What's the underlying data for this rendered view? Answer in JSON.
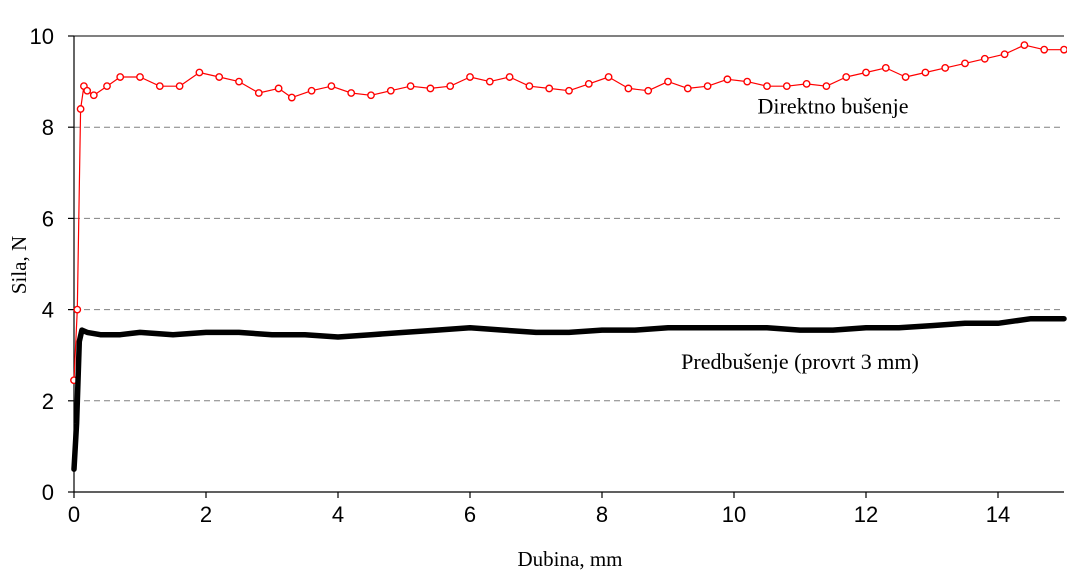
{
  "chart_data": {
    "type": "line",
    "xlabel": "Dubina, mm",
    "ylabel": "Sila, N",
    "xlim": [
      0,
      15
    ],
    "ylim": [
      0,
      10
    ],
    "x_ticks": [
      "0",
      "2",
      "4",
      "6",
      "8",
      "10",
      "12",
      "14"
    ],
    "y_ticks": [
      "0",
      "2",
      "4",
      "6",
      "8",
      "10"
    ],
    "grid": "horizontal dashed",
    "colors": {
      "red_series": "#ff0000",
      "black_series": "#000000",
      "grid": "#808080"
    },
    "annotations": [
      {
        "text": "Direktno bušenje",
        "x": 11.5,
        "y": 8.3
      },
      {
        "text": "Predbušenje (provrt 3 mm)",
        "x": 11.0,
        "y": 2.7
      }
    ],
    "series": [
      {
        "style": "line-with-circle-markers",
        "color": "#ff0000",
        "x": [
          0,
          0.05,
          0.1,
          0.15,
          0.2,
          0.3,
          0.5,
          0.7,
          1,
          1.3,
          1.6,
          1.9,
          2.2,
          2.5,
          2.8,
          3.1,
          3.3,
          3.6,
          3.9,
          4.2,
          4.5,
          4.8,
          5.1,
          5.4,
          5.7,
          6.0,
          6.3,
          6.6,
          6.9,
          7.2,
          7.5,
          7.8,
          8.1,
          8.4,
          8.7,
          9.0,
          9.3,
          9.6,
          9.9,
          10.2,
          10.5,
          10.8,
          11.1,
          11.4,
          11.7,
          12.0,
          12.3,
          12.6,
          12.9,
          13.2,
          13.5,
          13.8,
          14.1,
          14.4,
          14.7,
          15.0
        ],
        "y": [
          2.45,
          4.0,
          8.4,
          8.9,
          8.8,
          8.7,
          8.9,
          9.1,
          9.1,
          8.9,
          8.9,
          9.2,
          9.1,
          9.0,
          8.75,
          8.85,
          8.65,
          8.8,
          8.9,
          8.75,
          8.7,
          8.8,
          8.9,
          8.85,
          8.9,
          9.1,
          9.0,
          9.1,
          8.9,
          8.85,
          8.8,
          8.95,
          9.1,
          8.85,
          8.8,
          9.0,
          8.85,
          8.9,
          9.05,
          9.0,
          8.9,
          8.9,
          8.95,
          8.9,
          9.1,
          9.2,
          9.3,
          9.1,
          9.2,
          9.3,
          9.4,
          9.5,
          9.6,
          9.8,
          9.7,
          9.7
        ]
      },
      {
        "style": "thick-line",
        "color": "#000000",
        "x": [
          0,
          0.04,
          0.08,
          0.12,
          0.2,
          0.4,
          0.7,
          1,
          1.5,
          2,
          2.5,
          3,
          3.5,
          4,
          4.5,
          5,
          5.5,
          6,
          6.5,
          7,
          7.5,
          8,
          8.5,
          9,
          9.5,
          10,
          10.5,
          11,
          11.5,
          12,
          12.5,
          13,
          13.5,
          14,
          14.5,
          15
        ],
        "y": [
          0.5,
          1.5,
          3.3,
          3.55,
          3.5,
          3.45,
          3.45,
          3.5,
          3.45,
          3.5,
          3.5,
          3.45,
          3.45,
          3.4,
          3.45,
          3.5,
          3.55,
          3.6,
          3.55,
          3.5,
          3.5,
          3.55,
          3.55,
          3.6,
          3.6,
          3.6,
          3.6,
          3.55,
          3.55,
          3.6,
          3.6,
          3.65,
          3.7,
          3.7,
          3.8,
          3.8
        ]
      }
    ]
  }
}
